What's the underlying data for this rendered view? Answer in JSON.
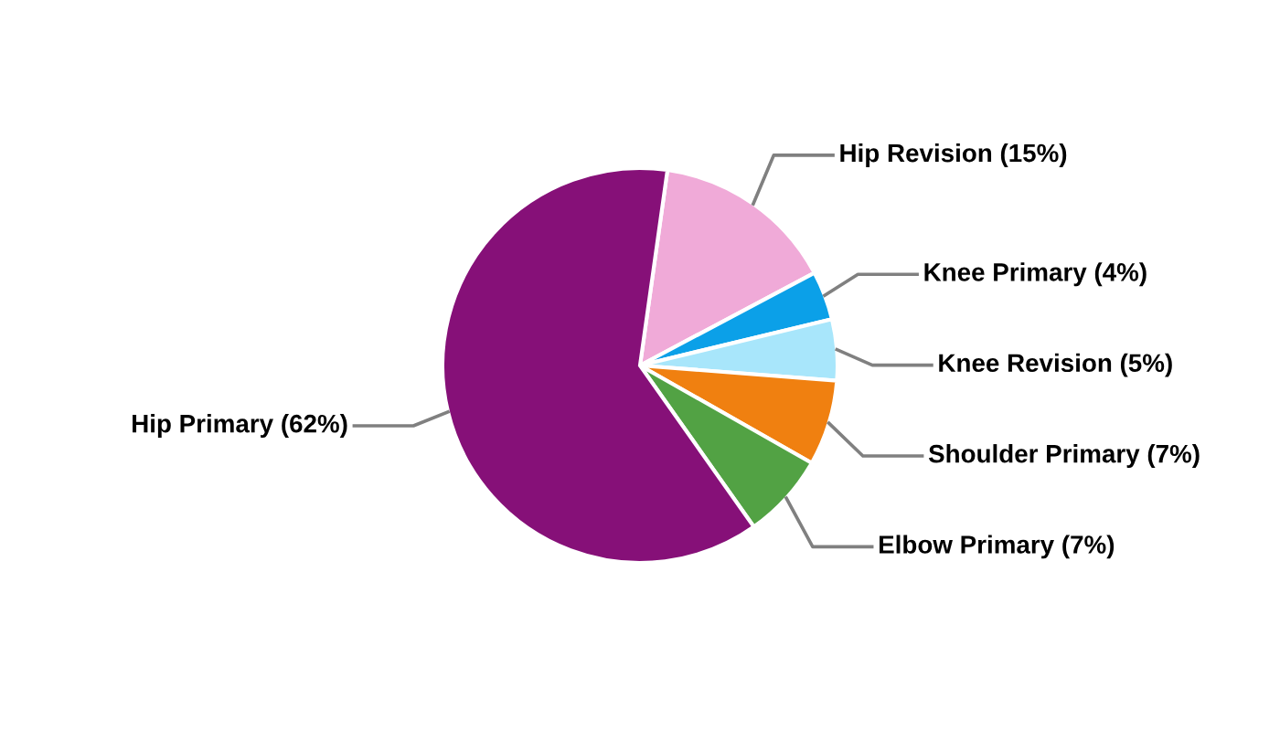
{
  "chart_data": {
    "type": "pie",
    "categories": [
      "Hip Revision (15%)",
      "Knee Primary (4%)",
      "Knee Revision (5%)",
      "Shoulder Primary (7%)",
      "Elbow Primary (7%)",
      "Hip Primary (62%)"
    ],
    "values": [
      15,
      4,
      5,
      7,
      7,
      62
    ],
    "colors": [
      "#f0aad8",
      "#0ba0e8",
      "#a8e6fb",
      "#f08010",
      "#52a244",
      "#861078"
    ]
  }
}
